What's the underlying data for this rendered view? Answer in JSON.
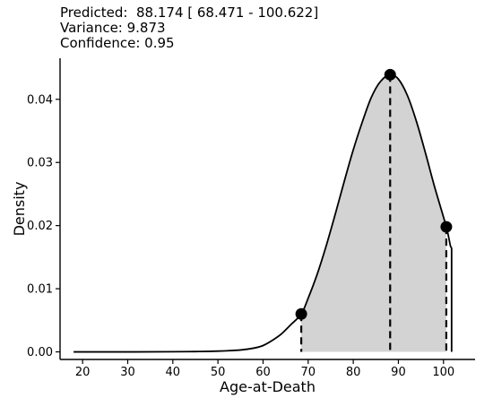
{
  "header": {
    "predicted_line": "Predicted:  88.174 [ 68.471 - 100.622]",
    "variance_line": "Variance: 9.873",
    "confidence_line": "Confidence: 0.95"
  },
  "chart_data": {
    "type": "area",
    "xlabel": "Age-at-Death",
    "ylabel": "Density",
    "xlim": [
      15,
      107
    ],
    "ylim": [
      -0.0012,
      0.0465
    ],
    "xticks": [
      20,
      30,
      40,
      50,
      60,
      70,
      80,
      90,
      100
    ],
    "yticks": [
      0.0,
      0.01,
      0.02,
      0.03,
      0.04
    ],
    "ytick_labels": [
      "0.00",
      "0.01",
      "0.02",
      "0.03",
      "0.04"
    ],
    "grid": false,
    "series": [
      {
        "x": [
          18,
          30,
          40,
          45,
          50,
          55,
          58,
          60,
          62,
          64,
          66,
          68.471,
          70,
          72,
          74,
          76,
          78,
          80,
          82,
          84,
          86,
          88.174,
          90,
          92,
          94,
          96,
          98,
          100.622,
          101.5,
          101.8
        ],
        "y": [
          0.0,
          0.0,
          2e-05,
          5e-05,
          0.00012,
          0.0003,
          0.0006,
          0.001,
          0.0018,
          0.0028,
          0.0042,
          0.006,
          0.0085,
          0.0123,
          0.0168,
          0.0218,
          0.027,
          0.032,
          0.0364,
          0.0403,
          0.0428,
          0.0439,
          0.0432,
          0.0406,
          0.0365,
          0.0315,
          0.0262,
          0.0198,
          0.0169,
          0.0165
        ]
      }
    ],
    "shaded_interval": [
      68.471,
      100.622
    ],
    "markers": [
      {
        "x": 68.471,
        "y": 0.006
      },
      {
        "x": 88.174,
        "y": 0.0439
      },
      {
        "x": 100.622,
        "y": 0.0198
      }
    ],
    "colors": {
      "fill": "#d3d3d3",
      "line": "#000000"
    }
  }
}
